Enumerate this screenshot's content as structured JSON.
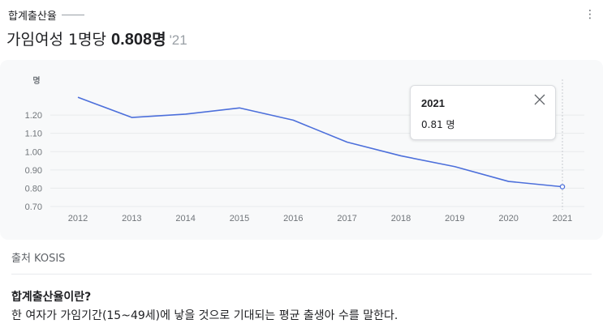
{
  "header": {
    "label": "합계출산율",
    "headline_prefix": "가임여성 1명당",
    "headline_value": "0.808",
    "headline_unit": "명",
    "headline_year": "'21",
    "more_icon": "more-vertical-icon"
  },
  "tooltip": {
    "year": "2021",
    "value": "0.81 명",
    "close_icon": "close-icon"
  },
  "source": {
    "text": "출처 KOSIS"
  },
  "definition": {
    "title": "합계출산율이란?",
    "text": "한 여자가 가임기간(15~49세)에 낳을 것으로 기대되는 평균 출생아 수를 말한다."
  },
  "colors": {
    "line": "#4c6fdb",
    "panel_bg": "#f8f9fa",
    "grid": "#e8eaed",
    "tick_text": "#70757a"
  },
  "chart_data": {
    "type": "line",
    "ylabel": "명",
    "x": [
      "2012",
      "2013",
      "2014",
      "2015",
      "2016",
      "2017",
      "2018",
      "2019",
      "2020",
      "2021"
    ],
    "ylim": [
      0.7,
      1.3
    ],
    "yticks": [
      "0.70",
      "0.80",
      "0.90",
      "1.00",
      "1.10",
      "1.20"
    ],
    "series": [
      {
        "values": [
          1.297,
          1.187,
          1.205,
          1.239,
          1.172,
          1.052,
          0.977,
          0.918,
          0.837,
          0.808
        ]
      }
    ],
    "highlight_index": 9,
    "grid": true
  }
}
